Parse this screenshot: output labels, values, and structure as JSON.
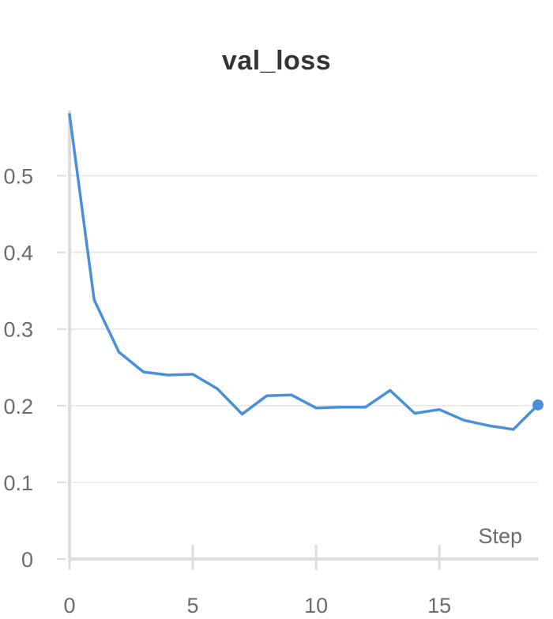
{
  "chart_data": {
    "type": "line",
    "title": "val_loss",
    "xlabel": "Step",
    "ylabel": "",
    "xlim": [
      0,
      19
    ],
    "ylim": [
      0,
      0.585
    ],
    "x_ticks": [
      0,
      5,
      10,
      15
    ],
    "x_tick_labels": [
      "0",
      "5",
      "10",
      "15"
    ],
    "y_ticks": [
      0,
      0.1,
      0.2,
      0.3,
      0.4,
      0.5
    ],
    "y_tick_labels": [
      "0",
      "0.1",
      "0.2",
      "0.3",
      "0.4",
      "0.5"
    ],
    "grid": true,
    "colors": {
      "line": "#4a90d9",
      "grid": "#e6e6e6",
      "axis": "#dddddd",
      "tick_text": "#6b6b6b"
    },
    "series": [
      {
        "x": [
          0,
          1,
          2,
          3,
          4,
          5,
          6,
          7,
          8,
          9,
          10,
          11,
          12,
          13,
          14,
          15,
          16,
          17,
          18,
          19
        ],
        "values": [
          0.58,
          0.338,
          0.27,
          0.244,
          0.24,
          0.241,
          0.222,
          0.189,
          0.213,
          0.214,
          0.197,
          0.198,
          0.198,
          0.22,
          0.19,
          0.195,
          0.181,
          0.174,
          0.169,
          0.201
        ]
      }
    ]
  }
}
